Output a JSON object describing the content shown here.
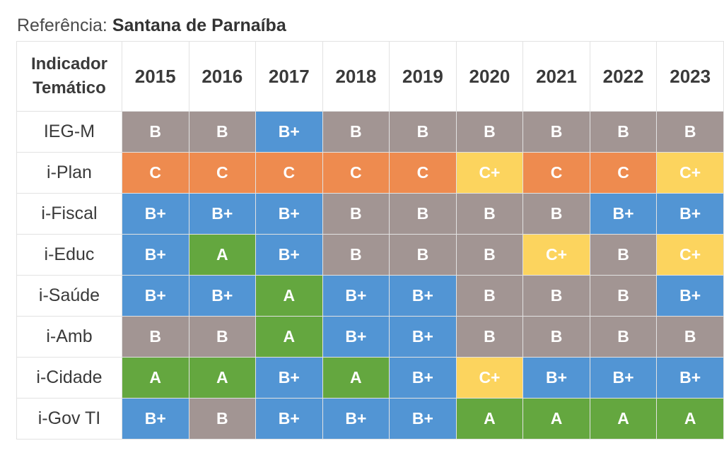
{
  "reference": {
    "label": "Referência:",
    "city": "Santana de Parnaíba"
  },
  "table": {
    "indicator_header_line1": "Indicador",
    "indicator_header_line2": "Temático",
    "years": [
      "2015",
      "2016",
      "2017",
      "2018",
      "2019",
      "2020",
      "2021",
      "2022",
      "2023"
    ],
    "rows": [
      {
        "indicator": "IEG-M",
        "grades": [
          "B",
          "B",
          "B+",
          "B",
          "B",
          "B",
          "B",
          "B",
          "B"
        ]
      },
      {
        "indicator": "i-Plan",
        "grades": [
          "C",
          "C",
          "C",
          "C",
          "C",
          "C+",
          "C",
          "C",
          "C+"
        ]
      },
      {
        "indicator": "i-Fiscal",
        "grades": [
          "B+",
          "B+",
          "B+",
          "B",
          "B",
          "B",
          "B",
          "B+",
          "B+"
        ]
      },
      {
        "indicator": "i-Educ",
        "grades": [
          "B+",
          "A",
          "B+",
          "B",
          "B",
          "B",
          "C+",
          "B",
          "C+"
        ]
      },
      {
        "indicator": "i-Saúde",
        "grades": [
          "B+",
          "B+",
          "A",
          "B+",
          "B+",
          "B",
          "B",
          "B",
          "B+"
        ]
      },
      {
        "indicator": "i-Amb",
        "grades": [
          "B",
          "B",
          "A",
          "B+",
          "B+",
          "B",
          "B",
          "B",
          "B"
        ]
      },
      {
        "indicator": "i-Cidade",
        "grades": [
          "A",
          "A",
          "B+",
          "A",
          "B+",
          "C+",
          "B+",
          "B+",
          "B+"
        ]
      },
      {
        "indicator": "i-Gov TI",
        "grades": [
          "B+",
          "B",
          "B+",
          "B+",
          "B+",
          "A",
          "A",
          "A",
          "A"
        ]
      }
    ]
  },
  "grade_colors": {
    "A": "#64a73f",
    "B+": "#5295d4",
    "B": "#a29593",
    "C+": "#fcd45e",
    "C": "#ee8b4f"
  }
}
